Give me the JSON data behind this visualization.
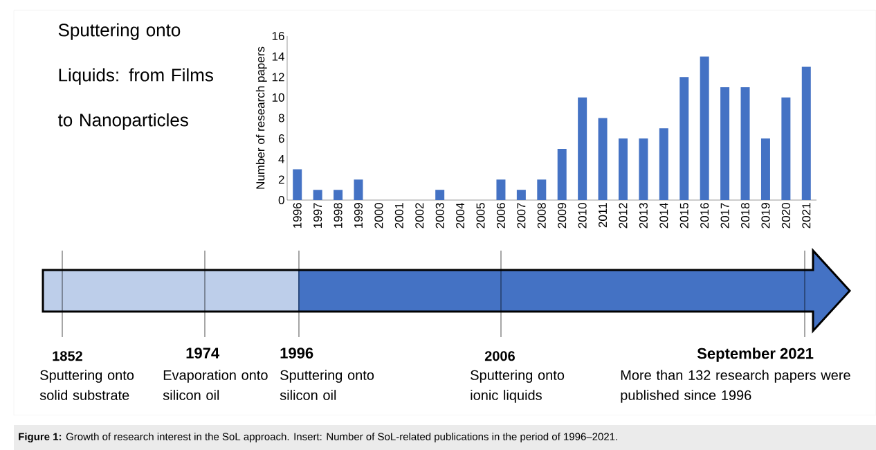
{
  "chart_data": {
    "type": "bar",
    "title": "Sputtering onto Liquids: from Films to Nanoparticles",
    "ylabel": "Number of research papers",
    "categories": [
      "1996",
      "1997",
      "1998",
      "1999",
      "2000",
      "2001",
      "2002",
      "2003",
      "2004",
      "2005",
      "2006",
      "2007",
      "2008",
      "2009",
      "2010",
      "2011",
      "2012",
      "2013",
      "2014",
      "2015",
      "2016",
      "2017",
      "2018",
      "2019",
      "2020",
      "2021"
    ],
    "values": [
      3,
      1,
      1,
      2,
      0,
      0,
      0,
      1,
      0,
      0,
      2,
      1,
      2,
      5,
      10,
      8,
      6,
      6,
      7,
      12,
      14,
      11,
      11,
      6,
      10,
      13
    ],
    "color": "#4472c4",
    "ylim": [
      0,
      16
    ],
    "yticks": [
      0,
      2,
      4,
      6,
      8,
      10,
      12,
      14,
      16
    ],
    "grid": false,
    "annotations": [
      "1852",
      "Sputtering onto solid substrate",
      "1974",
      "Evaporation onto silicon oil",
      "1996",
      "Sputtering onto silicon oil",
      "2006",
      "Sputtering onto ionic liquids",
      "September 2021",
      "More than 132 research papers were published since 1996",
      "**Figure 1:** Growth of research interest in the SoL approach. Insert: Number of SoL-related publications in the period of 1996–2021."
    ]
  }
}
